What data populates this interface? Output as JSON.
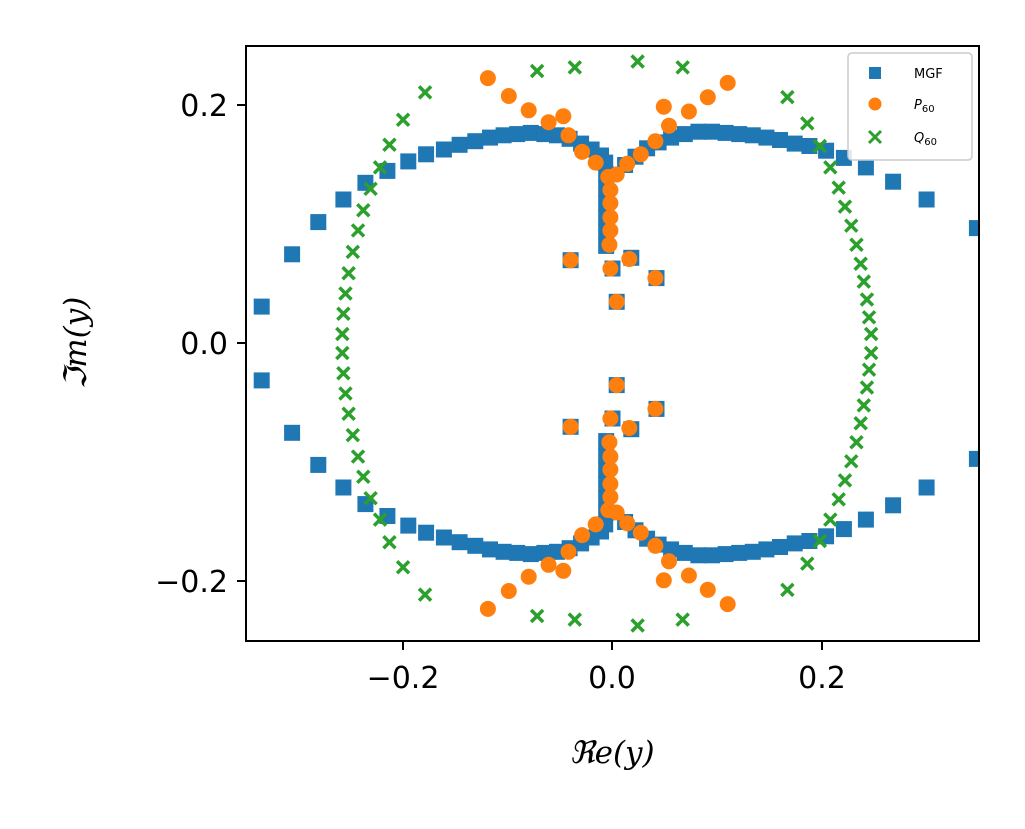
{
  "chart_data": {
    "type": "scatter",
    "xlabel": "ℜe(y)",
    "ylabel": "ℑm(y)",
    "xlim": [
      -0.35,
      0.35
    ],
    "ylim": [
      -0.25,
      0.25
    ],
    "xticks": [
      -0.2,
      0.0,
      0.2
    ],
    "yticks": [
      -0.2,
      0.0,
      0.2
    ],
    "xtick_labels": [
      "−0.2",
      "0.0",
      "0.2"
    ],
    "ytick_labels": [
      "−0.2",
      "0.0",
      "0.2"
    ],
    "grid": false,
    "legend_position": "top-right",
    "series": [
      {
        "name": "MGF",
        "marker": "square",
        "color": "#1f77b4",
        "points": [
          [
            -0.335,
            0.031
          ],
          [
            -0.306,
            0.075
          ],
          [
            -0.281,
            0.102
          ],
          [
            -0.257,
            0.121
          ],
          [
            -0.236,
            0.135
          ],
          [
            -0.215,
            0.145
          ],
          [
            -0.195,
            0.153
          ],
          [
            -0.178,
            0.159
          ],
          [
            -0.161,
            0.163
          ],
          [
            -0.146,
            0.167
          ],
          [
            -0.131,
            0.17
          ],
          [
            -0.117,
            0.173
          ],
          [
            -0.104,
            0.175
          ],
          [
            -0.091,
            0.176
          ],
          [
            -0.078,
            0.177
          ],
          [
            -0.065,
            0.176
          ],
          [
            -0.053,
            0.175
          ],
          [
            -0.041,
            0.172
          ],
          [
            -0.03,
            0.168
          ],
          [
            -0.02,
            0.163
          ],
          [
            -0.011,
            0.158
          ],
          [
            -0.007,
            0.152
          ],
          [
            -0.006,
            0.142
          ],
          [
            -0.006,
            0.13
          ],
          [
            -0.006,
            0.118
          ],
          [
            -0.006,
            0.106
          ],
          [
            -0.006,
            0.094
          ],
          [
            -0.006,
            0.082
          ],
          [
            0.012,
            0.15
          ],
          [
            0.022,
            0.157
          ],
          [
            0.033,
            0.164
          ],
          [
            0.044,
            0.169
          ],
          [
            0.056,
            0.173
          ],
          [
            0.069,
            0.176
          ],
          [
            0.082,
            0.178
          ],
          [
            0.095,
            0.178
          ],
          [
            0.108,
            0.177
          ],
          [
            0.121,
            0.176
          ],
          [
            0.134,
            0.175
          ],
          [
            0.147,
            0.173
          ],
          [
            0.16,
            0.171
          ],
          [
            0.174,
            0.168
          ],
          [
            0.188,
            0.166
          ],
          [
            0.204,
            0.162
          ],
          [
            0.221,
            0.156
          ],
          [
            0.242,
            0.148
          ],
          [
            0.268,
            0.136
          ],
          [
            0.3,
            0.121
          ],
          [
            0.348,
            0.097
          ],
          [
            -0.04,
            0.07
          ],
          [
            0.0,
            0.063
          ],
          [
            0.018,
            0.072
          ],
          [
            0.042,
            0.055
          ],
          [
            0.004,
            0.035
          ],
          [
            -0.335,
            -0.031
          ],
          [
            -0.306,
            -0.075
          ],
          [
            -0.281,
            -0.102
          ],
          [
            -0.257,
            -0.121
          ],
          [
            -0.236,
            -0.135
          ],
          [
            -0.215,
            -0.145
          ],
          [
            -0.195,
            -0.153
          ],
          [
            -0.178,
            -0.159
          ],
          [
            -0.161,
            -0.163
          ],
          [
            -0.146,
            -0.167
          ],
          [
            -0.131,
            -0.17
          ],
          [
            -0.117,
            -0.173
          ],
          [
            -0.104,
            -0.175
          ],
          [
            -0.091,
            -0.176
          ],
          [
            -0.078,
            -0.177
          ],
          [
            -0.065,
            -0.176
          ],
          [
            -0.053,
            -0.175
          ],
          [
            -0.041,
            -0.172
          ],
          [
            -0.03,
            -0.168
          ],
          [
            -0.02,
            -0.163
          ],
          [
            -0.011,
            -0.158
          ],
          [
            -0.007,
            -0.152
          ],
          [
            -0.006,
            -0.142
          ],
          [
            -0.006,
            -0.13
          ],
          [
            -0.006,
            -0.118
          ],
          [
            -0.006,
            -0.106
          ],
          [
            -0.006,
            -0.094
          ],
          [
            -0.006,
            -0.082
          ],
          [
            0.012,
            -0.15
          ],
          [
            0.022,
            -0.157
          ],
          [
            0.033,
            -0.164
          ],
          [
            0.044,
            -0.169
          ],
          [
            0.056,
            -0.173
          ],
          [
            0.069,
            -0.176
          ],
          [
            0.082,
            -0.178
          ],
          [
            0.095,
            -0.178
          ],
          [
            0.108,
            -0.177
          ],
          [
            0.121,
            -0.176
          ],
          [
            0.134,
            -0.175
          ],
          [
            0.147,
            -0.173
          ],
          [
            0.16,
            -0.171
          ],
          [
            0.174,
            -0.168
          ],
          [
            0.188,
            -0.166
          ],
          [
            0.204,
            -0.162
          ],
          [
            0.221,
            -0.156
          ],
          [
            0.242,
            -0.148
          ],
          [
            0.268,
            -0.136
          ],
          [
            0.3,
            -0.121
          ],
          [
            0.348,
            -0.097
          ],
          [
            -0.04,
            -0.07
          ],
          [
            0.0,
            -0.063
          ],
          [
            0.018,
            -0.072
          ],
          [
            0.042,
            -0.055
          ],
          [
            0.004,
            -0.035
          ]
        ]
      },
      {
        "name": "P60",
        "marker": "circle",
        "color": "#ff7f0e",
        "points": [
          [
            -0.119,
            0.223
          ],
          [
            -0.099,
            0.208
          ],
          [
            -0.08,
            0.196
          ],
          [
            -0.061,
            0.186
          ],
          [
            -0.047,
            0.191
          ],
          [
            -0.042,
            0.175
          ],
          [
            -0.029,
            0.161
          ],
          [
            -0.016,
            0.152
          ],
          [
            -0.004,
            0.14
          ],
          [
            -0.002,
            0.129
          ],
          [
            -0.002,
            0.118
          ],
          [
            -0.002,
            0.106
          ],
          [
            -0.002,
            0.095
          ],
          [
            -0.003,
            0.083
          ],
          [
            0.004,
            0.142
          ],
          [
            0.014,
            0.151
          ],
          [
            0.027,
            0.159
          ],
          [
            0.041,
            0.17
          ],
          [
            0.054,
            0.183
          ],
          [
            0.049,
            0.199
          ],
          [
            0.073,
            0.195
          ],
          [
            0.091,
            0.207
          ],
          [
            0.11,
            0.219
          ],
          [
            -0.04,
            0.07
          ],
          [
            -0.002,
            0.063
          ],
          [
            0.016,
            0.071
          ],
          [
            0.041,
            0.055
          ],
          [
            0.004,
            0.035
          ],
          [
            -0.119,
            -0.223
          ],
          [
            -0.099,
            -0.208
          ],
          [
            -0.08,
            -0.196
          ],
          [
            -0.061,
            -0.186
          ],
          [
            -0.047,
            -0.191
          ],
          [
            -0.042,
            -0.175
          ],
          [
            -0.029,
            -0.161
          ],
          [
            -0.016,
            -0.152
          ],
          [
            -0.004,
            -0.14
          ],
          [
            -0.002,
            -0.129
          ],
          [
            -0.002,
            -0.118
          ],
          [
            -0.002,
            -0.106
          ],
          [
            -0.002,
            -0.095
          ],
          [
            -0.003,
            -0.083
          ],
          [
            0.004,
            -0.142
          ],
          [
            0.014,
            -0.151
          ],
          [
            0.027,
            -0.159
          ],
          [
            0.041,
            -0.17
          ],
          [
            0.054,
            -0.183
          ],
          [
            0.049,
            -0.199
          ],
          [
            0.073,
            -0.195
          ],
          [
            0.091,
            -0.207
          ],
          [
            0.11,
            -0.219
          ],
          [
            -0.04,
            -0.07
          ],
          [
            -0.002,
            -0.063
          ],
          [
            0.016,
            -0.071
          ],
          [
            0.041,
            -0.055
          ],
          [
            0.004,
            -0.035
          ]
        ]
      },
      {
        "name": "Q60",
        "marker": "x",
        "color": "#2ca02c",
        "points": [
          [
            -0.072,
            0.229
          ],
          [
            -0.036,
            0.232
          ],
          [
            0.024,
            0.237
          ],
          [
            0.067,
            0.232
          ],
          [
            -0.179,
            0.211
          ],
          [
            -0.2,
            0.188
          ],
          [
            -0.213,
            0.167
          ],
          [
            -0.222,
            0.148
          ],
          [
            -0.231,
            0.13
          ],
          [
            -0.238,
            0.112
          ],
          [
            -0.243,
            0.095
          ],
          [
            -0.248,
            0.077
          ],
          [
            -0.252,
            0.059
          ],
          [
            -0.255,
            0.042
          ],
          [
            -0.257,
            0.025
          ],
          [
            -0.258,
            0.008
          ],
          [
            0.167,
            0.207
          ],
          [
            0.186,
            0.185
          ],
          [
            0.198,
            0.166
          ],
          [
            0.208,
            0.148
          ],
          [
            0.216,
            0.131
          ],
          [
            0.222,
            0.115
          ],
          [
            0.228,
            0.099
          ],
          [
            0.233,
            0.083
          ],
          [
            0.237,
            0.067
          ],
          [
            0.24,
            0.052
          ],
          [
            0.243,
            0.037
          ],
          [
            0.245,
            0.022
          ],
          [
            0.247,
            0.008
          ],
          [
            -0.072,
            -0.229
          ],
          [
            -0.036,
            -0.232
          ],
          [
            0.024,
            -0.237
          ],
          [
            0.067,
            -0.232
          ],
          [
            -0.179,
            -0.211
          ],
          [
            -0.2,
            -0.188
          ],
          [
            -0.213,
            -0.167
          ],
          [
            -0.222,
            -0.148
          ],
          [
            -0.231,
            -0.13
          ],
          [
            -0.238,
            -0.112
          ],
          [
            -0.243,
            -0.095
          ],
          [
            -0.248,
            -0.077
          ],
          [
            -0.252,
            -0.059
          ],
          [
            -0.255,
            -0.042
          ],
          [
            -0.257,
            -0.025
          ],
          [
            -0.258,
            -0.008
          ],
          [
            0.167,
            -0.207
          ],
          [
            0.186,
            -0.185
          ],
          [
            0.198,
            -0.166
          ],
          [
            0.208,
            -0.148
          ],
          [
            0.216,
            -0.131
          ],
          [
            0.222,
            -0.115
          ],
          [
            0.228,
            -0.099
          ],
          [
            0.233,
            -0.083
          ],
          [
            0.237,
            -0.067
          ],
          [
            0.24,
            -0.052
          ],
          [
            0.243,
            -0.037
          ],
          [
            0.245,
            -0.022
          ],
          [
            0.247,
            -0.008
          ]
        ]
      }
    ],
    "legend": [
      {
        "label": "MGF",
        "marker": "square",
        "color": "#1f77b4"
      },
      {
        "label": "P",
        "sub": "60",
        "marker": "circle",
        "color": "#ff7f0e"
      },
      {
        "label": "Q",
        "sub": "60",
        "marker": "x",
        "color": "#2ca02c"
      }
    ]
  }
}
